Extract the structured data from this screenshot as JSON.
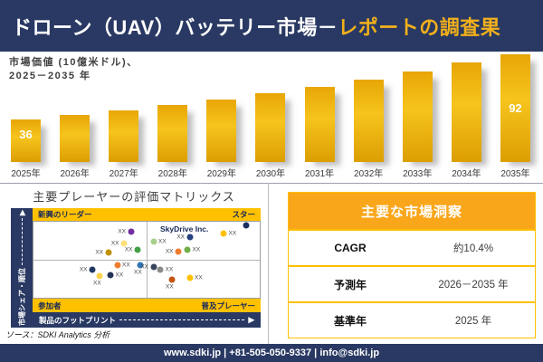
{
  "header": {
    "title_main": "ドローン（UAV）バッテリー市場－",
    "title_accent": "レポートの調査果"
  },
  "bar_caption": {
    "line1": "市場価値 (10億米ドル)、",
    "line2": "2025－2035 年"
  },
  "chart_data": [
    {
      "type": "bar",
      "title": "市場価値 (10億米ドル)、2025－2035 年",
      "categories": [
        "2025年",
        "2026年",
        "2027年",
        "2028年",
        "2029年",
        "2030年",
        "2031年",
        "2032年",
        "2033年",
        "2034年",
        "2035年"
      ],
      "values": [
        36,
        40,
        44,
        48,
        53,
        58,
        64,
        70,
        77,
        84,
        92
      ],
      "value_labels_shown_at": [
        0,
        10
      ],
      "ylabel": "市場価値 (10億米ドル)",
      "ylim": [
        0,
        100
      ],
      "grid": false,
      "bar_color": "#E8A606"
    },
    {
      "type": "scatter",
      "title": "主要プレーヤーの評価マトリックス",
      "xlabel": "製品のフットプリント",
      "ylabel": "市場シェア・順位",
      "quadrants": {
        "top_left": "新興のリーダー",
        "top_right": "スター",
        "bottom_left": "参加者",
        "bottom_right": "普及プレーヤー"
      },
      "annotation": "SkyDrive Inc.",
      "point_label": "XX",
      "points": [
        {
          "x": 43,
          "y": 13,
          "color": "#7030A0",
          "side": "left"
        },
        {
          "x": 40,
          "y": 28,
          "color": "#FFE07D",
          "side": "left"
        },
        {
          "x": 33,
          "y": 40,
          "color": "#BF9000",
          "side": "left"
        },
        {
          "x": 46,
          "y": 37,
          "color": "#43A047",
          "side": "left"
        },
        {
          "x": 53,
          "y": 26,
          "color": "#A8D08D",
          "side": "right"
        },
        {
          "x": 69,
          "y": 20,
          "color": "#26417E",
          "side": "left"
        },
        {
          "x": 84,
          "y": 15,
          "color": "#FFC000",
          "side": "right"
        },
        {
          "x": 94,
          "y": 5,
          "color": "#1B2F5E",
          "side": "none"
        },
        {
          "x": 64,
          "y": 39,
          "color": "#ED7D31",
          "side": "left"
        },
        {
          "x": 68,
          "y": 37,
          "color": "#70AD47",
          "side": "right"
        },
        {
          "x": 37,
          "y": 57,
          "color": "#ED7D31",
          "side": "right"
        },
        {
          "x": 47,
          "y": 57,
          "color": "#2E75B6",
          "side": "below"
        },
        {
          "x": 26,
          "y": 63,
          "color": "#1F3864",
          "side": "left"
        },
        {
          "x": 34,
          "y": 70,
          "color": "#243455",
          "side": "right"
        },
        {
          "x": 29,
          "y": 72,
          "color": "#FFD34D",
          "side": "below"
        },
        {
          "x": 53,
          "y": 59,
          "color": "#39455E",
          "side": "left"
        },
        {
          "x": 56,
          "y": 63,
          "color": "#8A8A8A",
          "side": "right"
        },
        {
          "x": 61,
          "y": 76,
          "color": "#C55511",
          "side": "below"
        },
        {
          "x": 69,
          "y": 74,
          "color": "#FFC000",
          "side": "right"
        }
      ]
    }
  ],
  "insights": {
    "title": "主要な市場洞察",
    "rows": [
      {
        "label": "CAGR",
        "value": "約10.4%"
      },
      {
        "label": "予測年",
        "value": "2026－2035 年"
      },
      {
        "label": "基準年",
        "value": "2025 年"
      }
    ]
  },
  "source": "ソース：SDKI Analytics 分析",
  "footer": {
    "contact": "www.sdki.jp | +81-505-050-9337 | info@sdki.jp"
  },
  "colors": {
    "navy": "#293963",
    "accent_gold": "#F2B01B",
    "band_gold": "#FFC000",
    "table_header_gold": "#F9A61A",
    "bar_gold": "#E8A606",
    "bar_gold_light": "#F6C41C",
    "bar_gold_dark": "#DC9E03"
  }
}
